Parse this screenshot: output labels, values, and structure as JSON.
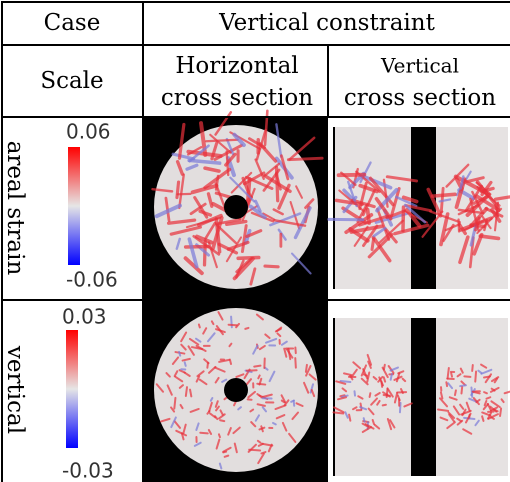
{
  "header": {
    "case": "Case",
    "condition": "Vertical constraint",
    "scale": "Scale",
    "columns": [
      [
        "Horizontal",
        "cross section"
      ],
      [
        "Vertical",
        "cross section"
      ]
    ]
  },
  "rows": [
    {
      "label": "areal strain",
      "scale_max": "0.06",
      "scale_min": "-0.06"
    },
    {
      "label": "vertical",
      "scale_max": "0.03",
      "scale_min": "-0.03"
    }
  ]
}
